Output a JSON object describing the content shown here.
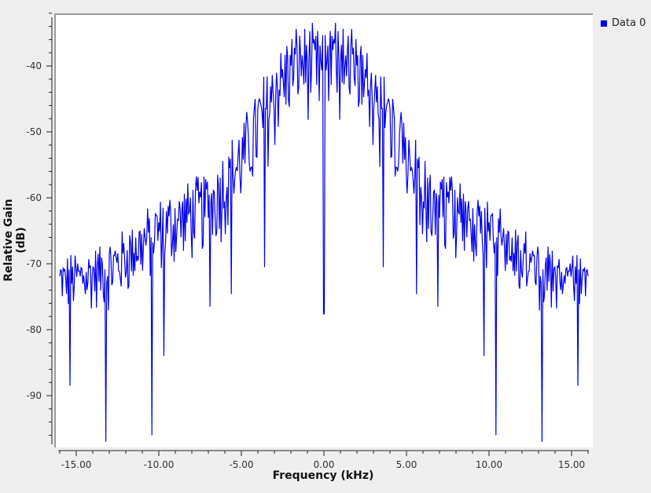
{
  "chart_data": {
    "type": "line",
    "title": "",
    "xlabel": "Frequency (kHz)",
    "ylabel": "Relative Gain (dB)",
    "xlim": [
      -16.2,
      16.2
    ],
    "ylim": [
      -97.8,
      -32.2
    ],
    "xticks": [
      -15,
      -10,
      -5,
      0,
      5,
      10,
      15
    ],
    "xtick_labels": [
      "-15.00",
      "-10.00",
      "-5.00",
      "0.00",
      "5.00",
      "10.00",
      "15.00"
    ],
    "yticks": [
      -40,
      -50,
      -60,
      -70,
      -80,
      -90
    ],
    "ytick_labels": [
      "-40",
      "-50",
      "-60",
      "-70",
      "-80",
      "-90"
    ],
    "grid": false,
    "legend_position": "right",
    "series": [
      {
        "name": "Data 0",
        "color": "#0000ee",
        "envelope": {
          "x": [
            -16,
            -13,
            -10,
            -7,
            -5,
            -3,
            -1.5,
            0,
            1.5,
            3,
            5,
            7,
            10,
            13,
            16
          ],
          "y_peak": [
            -68.5,
            -66,
            -59.5,
            -55,
            -48,
            -36,
            -33,
            -33.5,
            -33,
            -36,
            -48,
            -55,
            -59.5,
            -66,
            -68.5
          ],
          "y_trough": [
            -79,
            -78,
            -73,
            -70,
            -64,
            -55,
            -48,
            -52,
            -48,
            -55,
            -64,
            -70,
            -73,
            -78,
            -79
          ]
        },
        "deep_nulls": [
          {
            "x": -15.4,
            "y": -88.5
          },
          {
            "x": -13.2,
            "y": -97.0
          },
          {
            "x": -10.4,
            "y": -96.0
          },
          {
            "x": -9.7,
            "y": -84.0
          },
          {
            "x": -6.9,
            "y": -76.5
          },
          {
            "x": -5.6,
            "y": -74.6
          },
          {
            "x": -3.6,
            "y": -70.5
          },
          {
            "x": 0.0,
            "y": -77.6
          },
          {
            "x": 3.6,
            "y": -70.5
          },
          {
            "x": 5.6,
            "y": -74.6
          },
          {
            "x": 6.9,
            "y": -76.5
          },
          {
            "x": 9.7,
            "y": -84.0
          },
          {
            "x": 10.4,
            "y": -96.0
          },
          {
            "x": 13.2,
            "y": -97.0
          },
          {
            "x": 15.4,
            "y": -88.5
          }
        ],
        "num_points": 620
      }
    ]
  },
  "legend": {
    "items": [
      {
        "label": "Data 0",
        "color": "#0000ff"
      }
    ]
  },
  "axes": {
    "xlabel": "Frequency (kHz)",
    "ylabel": "Relative Gain (dB)"
  }
}
